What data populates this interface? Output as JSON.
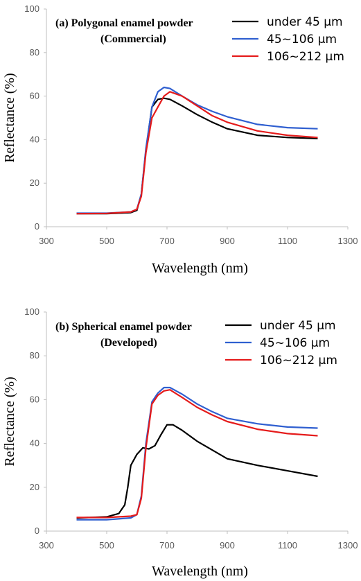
{
  "chart_data": [
    {
      "type": "line",
      "title": "(a) Polygonal enamel powder",
      "subtitle": "(Commercial)",
      "xlabel": "Wavelength (nm)",
      "ylabel": "Reflectance (%)",
      "xlim": [
        300,
        1300
      ],
      "ylim": [
        0,
        100
      ],
      "xticks": [
        "300",
        "500",
        "700",
        "900",
        "1100",
        "1300"
      ],
      "yticks": [
        "0",
        "20",
        "40",
        "60",
        "80",
        "100"
      ],
      "grid": false,
      "legend_position": "top-right",
      "series": [
        {
          "name": "under 45 μm",
          "color": "#000000",
          "x": [
            400,
            500,
            580,
            600,
            615,
            630,
            650,
            670,
            690,
            710,
            750,
            800,
            850,
            900,
            1000,
            1100,
            1200
          ],
          "y": [
            6,
            6,
            6.5,
            7.5,
            15,
            35,
            55,
            58.5,
            59,
            58.5,
            55.5,
            51.5,
            48,
            45,
            42,
            41,
            40.5
          ]
        },
        {
          "name": "45~106 μm",
          "color": "#2f5fd0",
          "x": [
            400,
            500,
            580,
            600,
            615,
            630,
            650,
            670,
            690,
            710,
            750,
            800,
            850,
            900,
            1000,
            1100,
            1200
          ],
          "y": [
            6.2,
            6.2,
            6.8,
            8,
            15,
            36,
            55,
            62,
            64,
            63.5,
            60,
            56,
            53,
            50.5,
            47,
            45.5,
            45
          ]
        },
        {
          "name": "106~212 μm",
          "color": "#e51b1b",
          "x": [
            400,
            500,
            580,
            600,
            615,
            630,
            650,
            670,
            690,
            710,
            750,
            800,
            850,
            900,
            1000,
            1100,
            1200
          ],
          "y": [
            6,
            6.1,
            6.8,
            8,
            14,
            34,
            50,
            55,
            60,
            62,
            60,
            55.5,
            51,
            48,
            44,
            42,
            41
          ]
        }
      ]
    },
    {
      "type": "line",
      "title": "(b) Spherical enamel powder",
      "subtitle": "(Developed)",
      "xlabel": "Wavelength (nm)",
      "ylabel": "Reflectance (%)",
      "xlim": [
        300,
        1300
      ],
      "ylim": [
        0,
        100
      ],
      "xticks": [
        "300",
        "500",
        "700",
        "900",
        "1100",
        "1300"
      ],
      "yticks": [
        "0",
        "20",
        "40",
        "60",
        "80",
        "100"
      ],
      "grid": false,
      "legend_position": "top-right",
      "series": [
        {
          "name": "under 45 μm",
          "color": "#000000",
          "x": [
            400,
            500,
            540,
            560,
            570,
            580,
            600,
            620,
            640,
            660,
            680,
            700,
            720,
            750,
            800,
            850,
            900,
            1000,
            1100,
            1200
          ],
          "y": [
            6,
            6.5,
            8,
            12,
            20,
            30,
            35,
            38,
            37.5,
            39,
            44,
            48.5,
            48.5,
            46,
            41,
            37,
            33,
            30,
            27.5,
            25
          ]
        },
        {
          "name": "45~106 μm",
          "color": "#2f5fd0",
          "x": [
            400,
            500,
            580,
            600,
            615,
            630,
            650,
            670,
            690,
            710,
            750,
            800,
            850,
            900,
            1000,
            1100,
            1200
          ],
          "y": [
            5.2,
            5.2,
            6,
            7.5,
            16,
            40,
            59,
            63,
            65.5,
            65.5,
            62.5,
            58,
            54.5,
            51.5,
            49,
            47.5,
            47
          ]
        },
        {
          "name": "106~212 μm",
          "color": "#e51b1b",
          "x": [
            400,
            500,
            580,
            600,
            615,
            630,
            650,
            670,
            690,
            710,
            750,
            800,
            850,
            900,
            1000,
            1100,
            1200
          ],
          "y": [
            6.2,
            6.2,
            6.8,
            7.5,
            15,
            38,
            58,
            62,
            64,
            64.5,
            61,
            56.5,
            53,
            50,
            46.5,
            44.5,
            43.5
          ]
        }
      ]
    }
  ]
}
